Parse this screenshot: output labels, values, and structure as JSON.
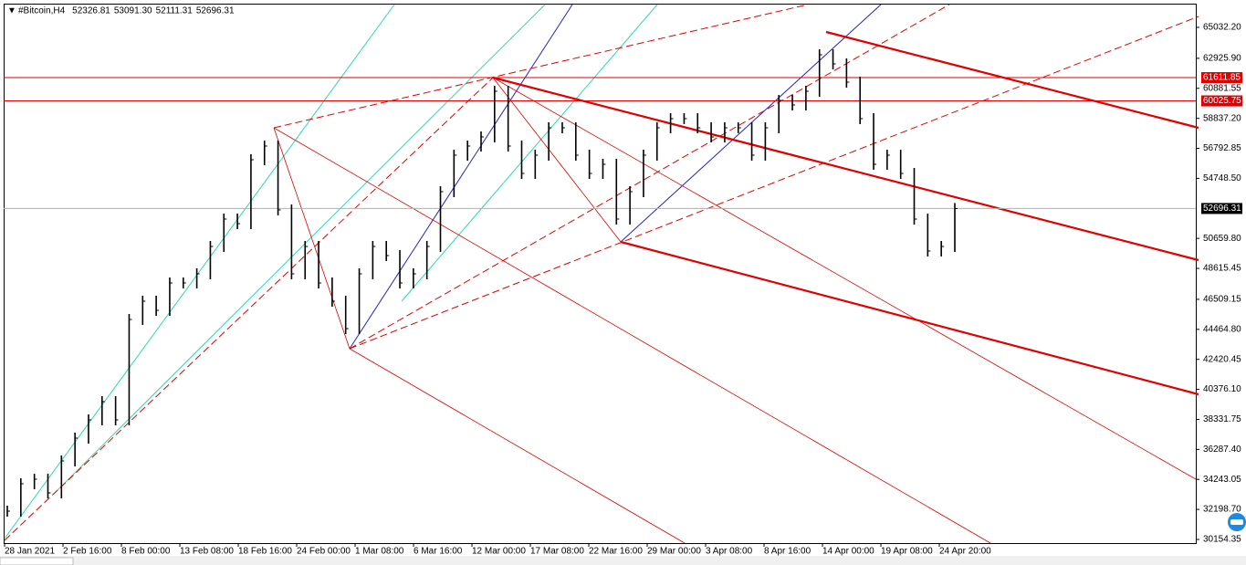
{
  "chart_data": {
    "type": "bar-chart",
    "symbol": "#Bitcoin,H4",
    "quote": [
      "52326.81",
      "53091.30",
      "52111.31",
      "52696.31"
    ],
    "values": [
      32082,
      33947,
      34258,
      33325,
      35501,
      37055,
      38299,
      39542,
      38299,
      45138,
      46381,
      45759,
      47624,
      47624,
      48246,
      50111,
      51976,
      51665,
      56017,
      56950,
      52598,
      48246,
      50111,
      47624,
      46381,
      44516,
      48246,
      50111,
      49489,
      47624,
      48246,
      50111,
      53841,
      56328,
      56950,
      57572,
      60680,
      56950,
      55085,
      56328,
      58193,
      58193,
      56328,
      55085,
      55706,
      51976,
      53841,
      56328,
      58193,
      58815,
      58815,
      58193,
      57572,
      58193,
      58193,
      56328,
      58193,
      60058,
      59748,
      60680,
      63167,
      62545,
      61302,
      58815,
      55706,
      56328,
      55085,
      51976,
      49800,
      50111,
      52696.31
    ],
    "ylim": [
      29905,
      66587
    ],
    "yticks": [
      {
        "value": 65032.2,
        "label": "65032.20"
      },
      {
        "value": 62925.9,
        "label": "62925.90"
      },
      {
        "value": 60881.55,
        "label": "60881.55"
      },
      {
        "value": 58837.2,
        "label": "58837.20"
      },
      {
        "value": 56792.85,
        "label": "56792.85"
      },
      {
        "value": 54748.5,
        "label": "54748.50"
      },
      {
        "value": 50659.8,
        "label": "50659.80"
      },
      {
        "value": 48615.45,
        "label": "48615.45"
      },
      {
        "value": 46509.15,
        "label": "46509.15"
      },
      {
        "value": 44464.8,
        "label": "44464.80"
      },
      {
        "value": 42420.45,
        "label": "42420.45"
      },
      {
        "value": 40376.1,
        "label": "40376.10"
      },
      {
        "value": 38331.75,
        "label": "38331.75"
      },
      {
        "value": 36287.4,
        "label": "36287.40"
      },
      {
        "value": 34243.05,
        "label": "34243.05"
      },
      {
        "value": 32198.7,
        "label": "32198.70"
      },
      {
        "value": 30154.35,
        "label": "30154.35"
      }
    ],
    "xtick_labels": [
      "28 Jan 2021",
      "2 Feb 16:00",
      "8 Feb 00:00",
      "13 Feb 08:00",
      "18 Feb 16:00",
      "24 Feb 00:00",
      "1 Mar 08:00",
      "6 Mar 16:00",
      "12 Mar 00:00",
      "17 Mar 08:00",
      "22 Mar 16:00",
      "29 Mar 00:00",
      "3 Apr 08:00",
      "8 Apr 16:00",
      "14 Apr 00:00",
      "19 Apr 08:00",
      "24 Apr 20:00"
    ],
    "price_lines": [
      {
        "value": 61611.85,
        "color": "#e00000"
      },
      {
        "value": 60025.75,
        "color": "#e00000"
      }
    ],
    "current_price": 52696.31,
    "bar_color": "#000000"
  }
}
